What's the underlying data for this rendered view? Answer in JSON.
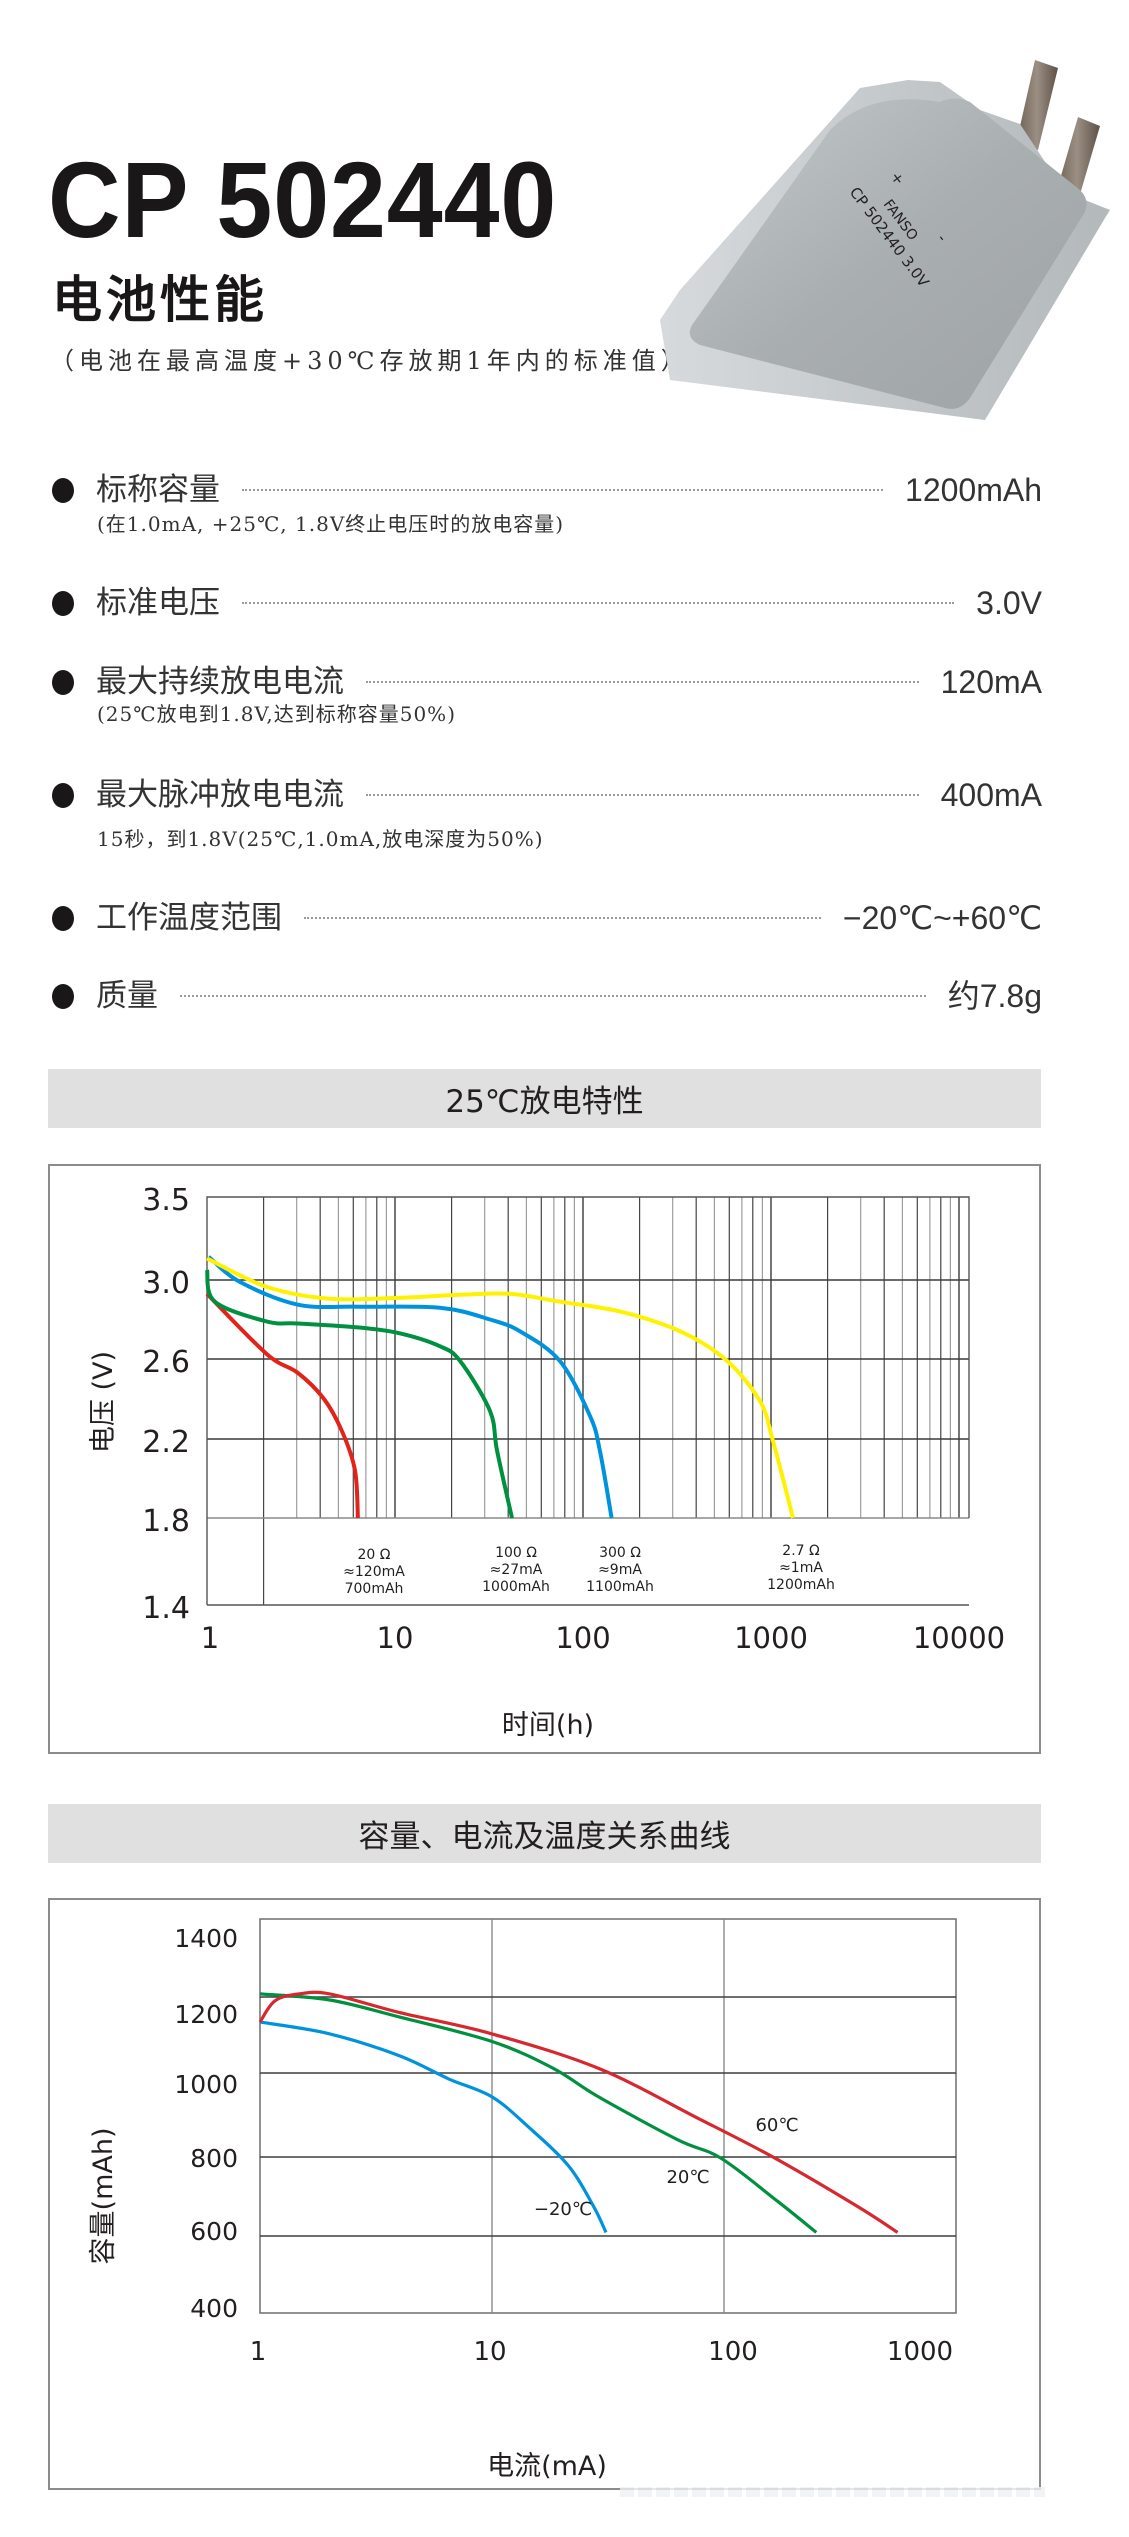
{
  "header": {
    "model": "CP 502440",
    "subtitle": "电池性能",
    "note": "（电池在最高温度+30℃存放期1年内的标准值）"
  },
  "battery_label": {
    "plus": "+",
    "minus": "-",
    "brand": "FANSO",
    "model_voltage": "CP 502440 3.0V"
  },
  "specs": [
    {
      "label": "标称容量",
      "value": "1200mAh",
      "sub": "(在1.0mA, +25℃, 1.8V终止电压时的放电容量)"
    },
    {
      "label": "标准电压",
      "value": "3.0V",
      "sub": ""
    },
    {
      "label": "最大持续放电电流",
      "value": "120mA",
      "sub": "(25℃放电到1.8V,达到标称容量50%)"
    },
    {
      "label": "最大脉冲放电电流",
      "value": "400mA",
      "sub": "15秒，到1.8V(25℃,1.0mA,放电深度为50%)"
    },
    {
      "label": "工作温度范围",
      "value": "−20℃~+60℃",
      "sub": ""
    },
    {
      "label": "质量",
      "value": "约7.8g",
      "sub": ""
    }
  ],
  "sections": {
    "discharge_title": "25℃放电特性",
    "capacity_title": "容量、电流及温度关系曲线"
  },
  "chart_data": [
    {
      "type": "line",
      "title": "25℃放电特性",
      "xlabel": "时间(h)",
      "ylabel": "电压 (V)",
      "xscale": "log",
      "xlim": [
        1,
        10000
      ],
      "ylim": [
        1.4,
        3.5
      ],
      "xticks": [
        "1",
        "10",
        "100",
        "1000",
        "10000"
      ],
      "yticks": [
        "3.5",
        "3.0",
        "2.6",
        "2.2",
        "1.8",
        "1.4"
      ],
      "grid": true,
      "series": [
        {
          "name": "20Ω ≈120mA 700mAh",
          "color": "#e2231a",
          "label_lines": [
            "20 Ω",
            "≈120mA",
            "700mAh"
          ],
          "points": [
            [
              1.0,
              2.93
            ],
            [
              2.08,
              2.625
            ],
            [
              3.05,
              2.53
            ],
            [
              4.19,
              2.4
            ],
            [
              5.22,
              2.24
            ],
            [
              6.13,
              2.04
            ],
            [
              6.35,
              1.8
            ]
          ]
        },
        {
          "name": "100Ω ≈27mA 1000mAh",
          "color": "#009140",
          "label_lines": [
            "100 Ω",
            "≈27mA",
            "1000mAh"
          ],
          "points": [
            [
              1.0,
              3.06
            ],
            [
              1.1,
              2.89
            ],
            [
              2.08,
              2.79
            ],
            [
              3.05,
              2.78
            ],
            [
              6.35,
              2.76
            ],
            [
              10.6,
              2.73
            ],
            [
              17.3,
              2.665
            ],
            [
              22.2,
              2.59
            ],
            [
              32.0,
              2.34
            ],
            [
              34.9,
              2.14
            ],
            [
              41.9,
              1.8
            ]
          ]
        },
        {
          "name": "300Ω ≈9mA 1100mAh",
          "color": "#0093dd",
          "label_lines": [
            "300 Ω",
            "≈9mA",
            "1100mAh"
          ],
          "points": [
            [
              1.02,
              3.14
            ],
            [
              1.5,
              2.99
            ],
            [
              3.05,
              2.875
            ],
            [
              6.35,
              2.865
            ],
            [
              17.3,
              2.86
            ],
            [
              32.0,
              2.8
            ],
            [
              46.2,
              2.74
            ],
            [
              75.4,
              2.59
            ],
            [
              109,
              2.315
            ],
            [
              123,
              2.14
            ],
            [
              142,
              1.8
            ]
          ]
        },
        {
          "name": "2.7Ω ≈1mA 1200mAh",
          "color": "#fff200",
          "label_lines": [
            "2.7 Ω",
            "≈1mA",
            "1200mAh"
          ],
          "points": [
            [
              1.0,
              3.13
            ],
            [
              2.08,
              2.965
            ],
            [
              4.51,
              2.905
            ],
            [
              10.6,
              2.91
            ],
            [
              22.2,
              2.925
            ],
            [
              40.9,
              2.93
            ],
            [
              75.4,
              2.89
            ],
            [
              158,
              2.84
            ],
            [
              329,
              2.74
            ],
            [
              577,
              2.595
            ],
            [
              873,
              2.39
            ],
            [
              1021,
              2.195
            ],
            [
              1310,
              1.8
            ]
          ]
        }
      ]
    },
    {
      "type": "line",
      "title": "容量、电流及温度关系曲线",
      "xlabel": "电流(mA)",
      "ylabel": "容量(mAh)",
      "xscale": "log",
      "xlim": [
        1,
        1000
      ],
      "ylim": [
        400,
        1400
      ],
      "xticks": [
        "1",
        "10",
        "100",
        "1000"
      ],
      "yticks": [
        "1400",
        "1200",
        "1000",
        "800",
        "600",
        "400"
      ],
      "grid": true,
      "series": [
        {
          "name": "-20℃",
          "color": "#0093dd",
          "label": "−20℃",
          "points": [
            [
              1,
              1134
            ],
            [
              2.0,
              1103
            ],
            [
              4.0,
              1045
            ],
            [
              6.5,
              986
            ],
            [
              10,
              943
            ],
            [
              14.4,
              871
            ],
            [
              21.4,
              777
            ],
            [
              27.4,
              675
            ],
            [
              31.0,
              609
            ]
          ]
        },
        {
          "name": "20℃",
          "color": "#009140",
          "label": "20℃",
          "points": [
            [
              1,
              1208
            ],
            [
              2.0,
              1192
            ],
            [
              4.0,
              1147
            ],
            [
              10,
              1083
            ],
            [
              18.4,
              1012
            ],
            [
              28.8,
              943
            ],
            [
              63.2,
              841
            ],
            [
              97,
              797
            ],
            [
              170,
              688
            ],
            [
              250,
              609
            ]
          ]
        },
        {
          "name": "60℃",
          "color": "#d7282f",
          "label": "60℃",
          "points": [
            [
              1,
              1134
            ],
            [
              1.16,
              1190
            ],
            [
              1.48,
              1208
            ],
            [
              2.0,
              1208
            ],
            [
              4.0,
              1159
            ],
            [
              10,
              1103
            ],
            [
              28.8,
              1012
            ],
            [
              77.4,
              892
            ],
            [
              166,
              797
            ],
            [
              376,
              675
            ],
            [
              560,
              609
            ]
          ]
        }
      ]
    }
  ]
}
